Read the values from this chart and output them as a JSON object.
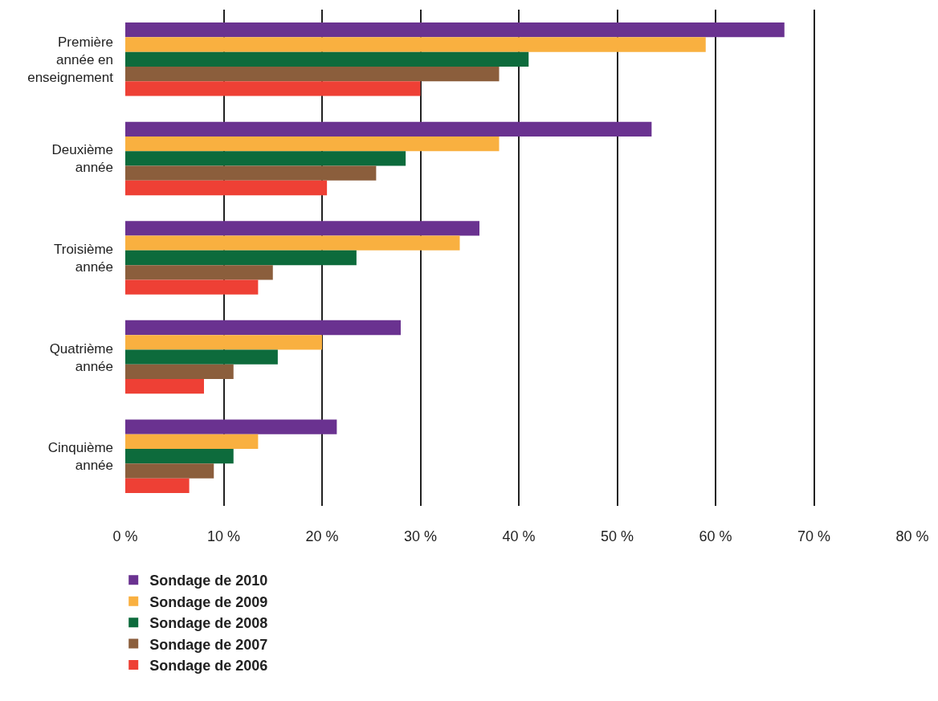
{
  "chart_data": {
    "type": "bar",
    "orientation": "horizontal",
    "categories": [
      "Première\nannée en\nenseignement",
      "Deuxième\nannée",
      "Troisième\nannée",
      "Quatrième\nannée",
      "Cinquième\nannée"
    ],
    "series": [
      {
        "name": "Sondage de 2010",
        "color": "#6a3290",
        "values": [
          67,
          53.5,
          36,
          28,
          21.5
        ]
      },
      {
        "name": "Sondage de 2009",
        "color": "#f9b040",
        "values": [
          59,
          38,
          34,
          20,
          13.5
        ]
      },
      {
        "name": "Sondage de 2008",
        "color": "#0d6b3c",
        "values": [
          41,
          28.5,
          23.5,
          15.5,
          11
        ]
      },
      {
        "name": "Sondage de 2007",
        "color": "#8b5e3c",
        "values": [
          38,
          25.5,
          15,
          11,
          9
        ]
      },
      {
        "name": "Sondage de 2006",
        "color": "#ee4035",
        "values": [
          30,
          20.5,
          13.5,
          8,
          6.5
        ]
      }
    ],
    "xlim": [
      0,
      80
    ],
    "xticks": [
      {
        "value": 0,
        "label": "0 %"
      },
      {
        "value": 10,
        "label": "10 %"
      },
      {
        "value": 20,
        "label": "20 %"
      },
      {
        "value": 30,
        "label": "30 %"
      },
      {
        "value": 40,
        "label": "40 %"
      },
      {
        "value": 50,
        "label": "50 %"
      },
      {
        "value": 60,
        "label": "60 %"
      },
      {
        "value": 70,
        "label": "70 %"
      },
      {
        "value": 80,
        "label": "80 %"
      }
    ],
    "grid": "x",
    "legend": "bottom left"
  }
}
